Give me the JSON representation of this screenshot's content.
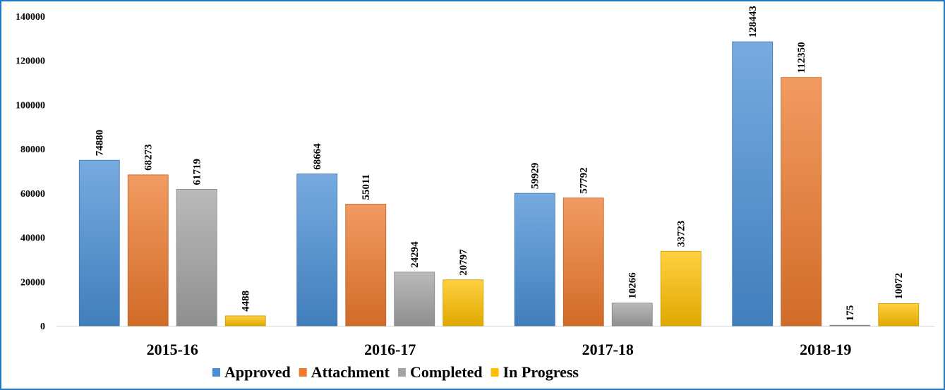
{
  "chart_data": {
    "type": "bar",
    "categories": [
      "2015-16",
      "2016-17",
      "2017-18",
      "2018-19"
    ],
    "series": [
      {
        "name": "Approved",
        "color": "#4a8fd6",
        "values": [
          74880,
          68664,
          59929,
          128443
        ]
      },
      {
        "name": "Attachment",
        "color": "#ee7a2e",
        "values": [
          68273,
          55011,
          57792,
          112350
        ]
      },
      {
        "name": "Completed",
        "color": "#a3a3a3",
        "values": [
          61719,
          24294,
          10266,
          175
        ]
      },
      {
        "name": "In Progress",
        "color": "#ffc000",
        "values": [
          4488,
          20797,
          33723,
          10072
        ]
      }
    ],
    "ylim": [
      0,
      140000
    ],
    "yticks": [
      0,
      20000,
      40000,
      60000,
      80000,
      100000,
      120000,
      140000
    ],
    "title": "",
    "xlabel": "",
    "ylabel": "",
    "grid": false,
    "legend": "bottom",
    "data_labels": true
  }
}
